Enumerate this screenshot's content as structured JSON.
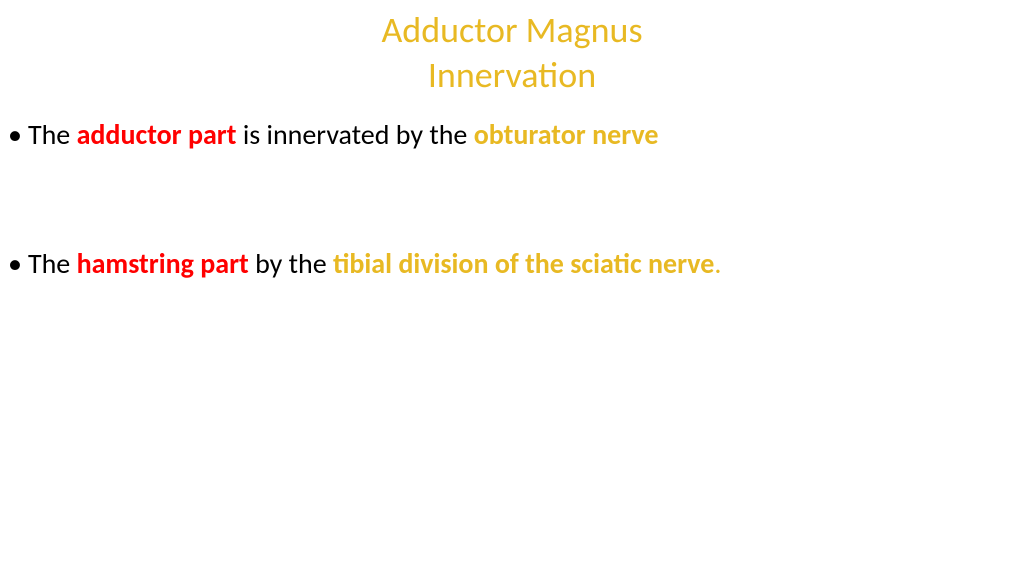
{
  "colors": {
    "gold": "#e8b923",
    "red": "#ff0000",
    "black": "#000000",
    "background": "#ffffff"
  },
  "title": {
    "line1": "Adductor Magnus",
    "line2": "Innervation",
    "color": "#e8b923",
    "fontsize": 36
  },
  "bullets": [
    {
      "segments": [
        {
          "text": "The ",
          "color": "#000000",
          "bold": false
        },
        {
          "text": "adductor part ",
          "color": "#ff0000",
          "bold": true
        },
        {
          "text": "is innervated by the ",
          "color": "#000000",
          "bold": false
        },
        {
          "text": "obturator nerve",
          "color": "#e8b923",
          "bold": true
        }
      ]
    },
    {
      "segments": [
        {
          "text": "The ",
          "color": "#000000",
          "bold": false
        },
        {
          "text": "hamstring part ",
          "color": "#ff0000",
          "bold": true
        },
        {
          "text": "by the ",
          "color": "#000000",
          "bold": false
        },
        {
          "text": "tibial division of  the sciatic nerve",
          "color": "#e8b923",
          "bold": true
        },
        {
          "text": ".",
          "color": "#e8b923",
          "bold": false
        }
      ]
    }
  ]
}
